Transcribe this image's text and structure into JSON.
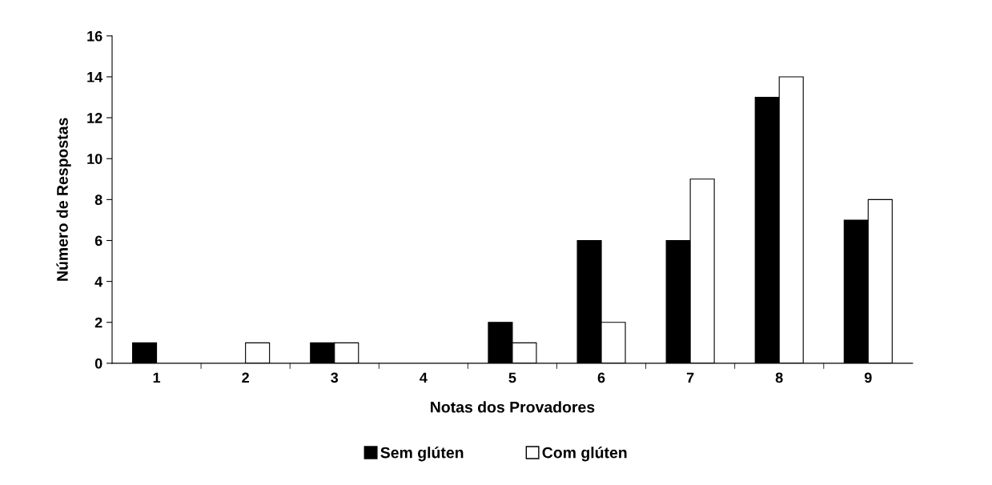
{
  "chart_data": {
    "type": "bar",
    "xlabel": "Notas dos Provadores",
    "ylabel": "Número de Respostas",
    "categories": [
      "1",
      "2",
      "3",
      "4",
      "5",
      "6",
      "7",
      "8",
      "9"
    ],
    "series": [
      {
        "name": "Sem glúten",
        "color": "#000000",
        "values": [
          1,
          0,
          1,
          0,
          2,
          6,
          6,
          13,
          7
        ]
      },
      {
        "name": "Com glúten",
        "color": "#ffffff",
        "values": [
          0,
          1,
          1,
          0,
          1,
          2,
          9,
          14,
          8
        ]
      }
    ],
    "ylim": [
      0,
      16
    ],
    "yticks": [
      0,
      2,
      4,
      6,
      8,
      10,
      12,
      14,
      16
    ],
    "grid": false,
    "legend": "bottom"
  }
}
